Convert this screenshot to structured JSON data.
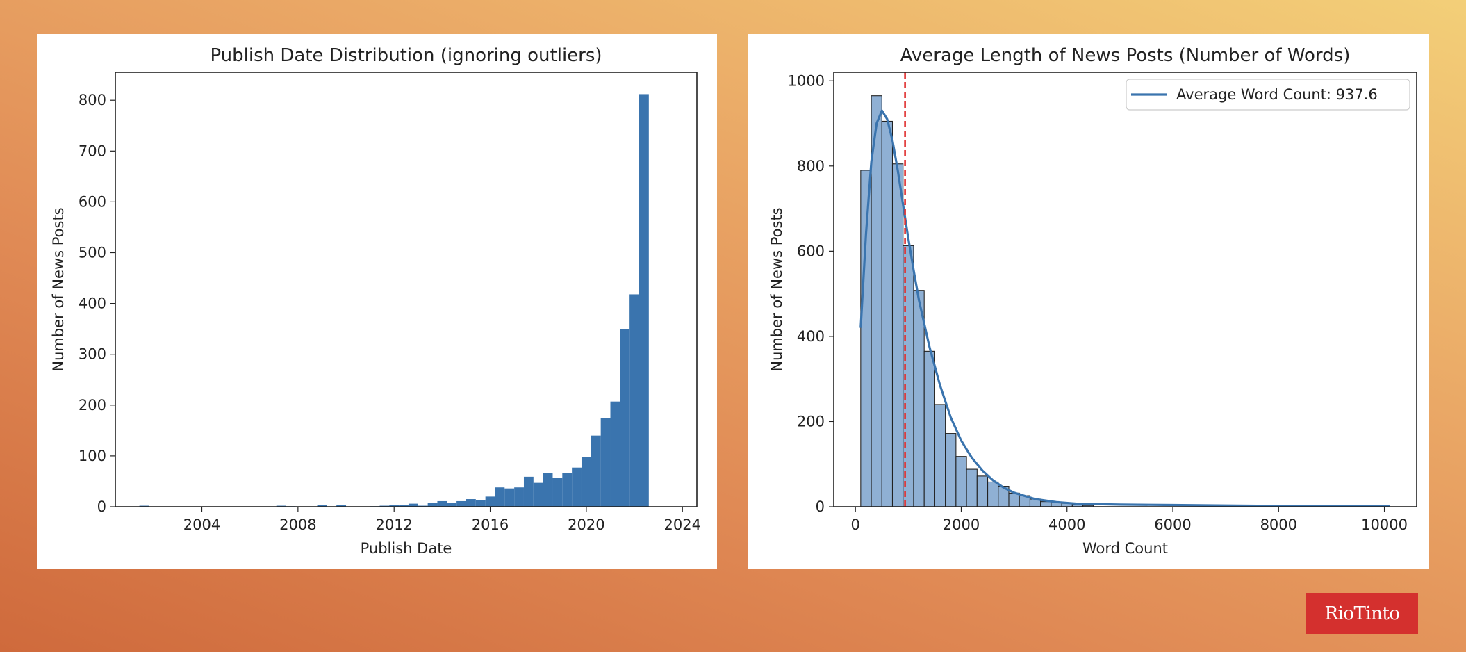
{
  "logo": {
    "text": "RioTinto",
    "color": "#d4302e"
  },
  "chart_data": [
    {
      "type": "bar",
      "title": "Publish Date Distribution (ignoring outliers)",
      "xlabel": "Publish Date",
      "ylabel": "Number of News Posts",
      "color": "#3a74ae",
      "xlim": [
        2000.4,
        2024.6
      ],
      "ylim": [
        0,
        855
      ],
      "xticks": [
        2004,
        2008,
        2012,
        2016,
        2020,
        2024
      ],
      "yticks": [
        0,
        100,
        200,
        300,
        400,
        500,
        600,
        700,
        800
      ],
      "bins": [
        {
          "x0": 2001.4,
          "x1": 2001.8,
          "value": 2
        },
        {
          "x0": 2007.1,
          "x1": 2007.5,
          "value": 2
        },
        {
          "x0": 2007.5,
          "x1": 2007.9,
          "value": 1
        },
        {
          "x0": 2008.8,
          "x1": 2009.2,
          "value": 3
        },
        {
          "x0": 2009.6,
          "x1": 2010.0,
          "value": 3
        },
        {
          "x0": 2011.0,
          "x1": 2011.4,
          "value": 1
        },
        {
          "x0": 2011.4,
          "x1": 2011.8,
          "value": 2
        },
        {
          "x0": 2011.8,
          "x1": 2012.2,
          "value": 3
        },
        {
          "x0": 2012.2,
          "x1": 2012.6,
          "value": 3
        },
        {
          "x0": 2012.6,
          "x1": 2013.0,
          "value": 6
        },
        {
          "x0": 2013.0,
          "x1": 2013.4,
          "value": 2
        },
        {
          "x0": 2013.4,
          "x1": 2013.8,
          "value": 7
        },
        {
          "x0": 2013.8,
          "x1": 2014.2,
          "value": 11
        },
        {
          "x0": 2014.2,
          "x1": 2014.6,
          "value": 7
        },
        {
          "x0": 2014.6,
          "x1": 2015.0,
          "value": 11
        },
        {
          "x0": 2015.0,
          "x1": 2015.4,
          "value": 15
        },
        {
          "x0": 2015.4,
          "x1": 2015.8,
          "value": 13
        },
        {
          "x0": 2015.8,
          "x1": 2016.2,
          "value": 20
        },
        {
          "x0": 2016.2,
          "x1": 2016.6,
          "value": 38
        },
        {
          "x0": 2016.6,
          "x1": 2017.0,
          "value": 36
        },
        {
          "x0": 2017.0,
          "x1": 2017.4,
          "value": 38
        },
        {
          "x0": 2017.4,
          "x1": 2017.8,
          "value": 59
        },
        {
          "x0": 2017.8,
          "x1": 2018.2,
          "value": 47
        },
        {
          "x0": 2018.2,
          "x1": 2018.6,
          "value": 66
        },
        {
          "x0": 2018.6,
          "x1": 2019.0,
          "value": 57
        },
        {
          "x0": 2019.0,
          "x1": 2019.4,
          "value": 66
        },
        {
          "x0": 2019.4,
          "x1": 2019.8,
          "value": 77
        },
        {
          "x0": 2019.8,
          "x1": 2020.2,
          "value": 98
        },
        {
          "x0": 2020.2,
          "x1": 2020.6,
          "value": 140
        },
        {
          "x0": 2020.6,
          "x1": 2021.0,
          "value": 175
        },
        {
          "x0": 2021.0,
          "x1": 2021.4,
          "value": 207
        },
        {
          "x0": 2021.4,
          "x1": 2021.8,
          "value": 349
        },
        {
          "x0": 2021.8,
          "x1": 2022.2,
          "value": 418
        },
        {
          "x0": 2022.2,
          "x1": 2022.6,
          "value": 812
        }
      ]
    },
    {
      "type": "bar",
      "title": "Average Length of News Posts (Number of Words)",
      "xlabel": "Word Count",
      "ylabel": "Number of News Posts",
      "bar_color": "#8fb0d4",
      "bar_edge_color": "#222222",
      "kde_color": "#3a74ae",
      "mean_line_color": "#e03030",
      "xlim": [
        -410,
        10610
      ],
      "ylim": [
        0,
        1020
      ],
      "xticks": [
        0,
        2000,
        4000,
        6000,
        8000,
        10000
      ],
      "yticks": [
        0,
        200,
        400,
        600,
        800,
        1000
      ],
      "bin_width": 200,
      "bins_start": 100,
      "bin_values": [
        790,
        965,
        905,
        805,
        613,
        508,
        365,
        240,
        172,
        118,
        88,
        72,
        58,
        48,
        32,
        26,
        18,
        12,
        10,
        8,
        5,
        3
      ],
      "kde": [
        [
          100,
          420
        ],
        [
          200,
          640
        ],
        [
          300,
          810
        ],
        [
          400,
          900
        ],
        [
          500,
          930
        ],
        [
          600,
          910
        ],
        [
          700,
          860
        ],
        [
          800,
          790
        ],
        [
          900,
          710
        ],
        [
          1000,
          630
        ],
        [
          1100,
          555
        ],
        [
          1200,
          485
        ],
        [
          1400,
          375
        ],
        [
          1600,
          285
        ],
        [
          1800,
          210
        ],
        [
          2000,
          155
        ],
        [
          2200,
          115
        ],
        [
          2400,
          85
        ],
        [
          2600,
          62
        ],
        [
          2800,
          45
        ],
        [
          3000,
          33
        ],
        [
          3400,
          18
        ],
        [
          3800,
          11
        ],
        [
          4200,
          7
        ],
        [
          5000,
          5
        ],
        [
          6000,
          4
        ],
        [
          7000,
          3
        ],
        [
          8000,
          2
        ],
        [
          9000,
          2
        ],
        [
          10100,
          1
        ]
      ],
      "mean_value": 937.6,
      "legend": {
        "label": "Average Word Count: 937.6",
        "position": "upper right"
      }
    }
  ]
}
